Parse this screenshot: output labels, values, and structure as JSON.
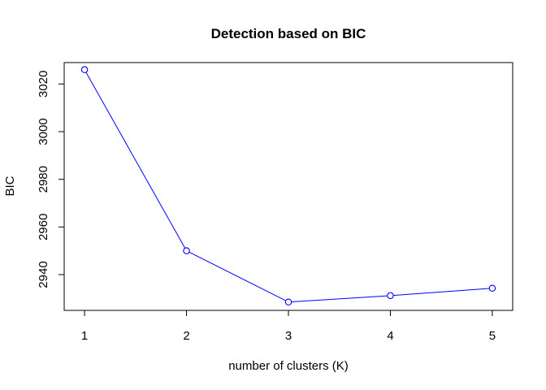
{
  "chart_data": {
    "type": "line",
    "title": "Detection based on BIC",
    "xlabel": "number of clusters (K)",
    "ylabel": "BIC",
    "x": [
      1,
      2,
      3,
      4,
      5
    ],
    "series": [
      {
        "values": [
          3026,
          2950,
          2928.5,
          2931.2,
          2934.3
        ],
        "color": "#0000ff"
      }
    ],
    "xticks": [
      1,
      2,
      3,
      4,
      5
    ],
    "yticks": [
      2940,
      2960,
      2980,
      3000,
      3020
    ],
    "xlim": [
      0.8,
      5.2
    ],
    "ylim": [
      2925,
      3029
    ],
    "grid": false,
    "marker": "open-circle"
  }
}
